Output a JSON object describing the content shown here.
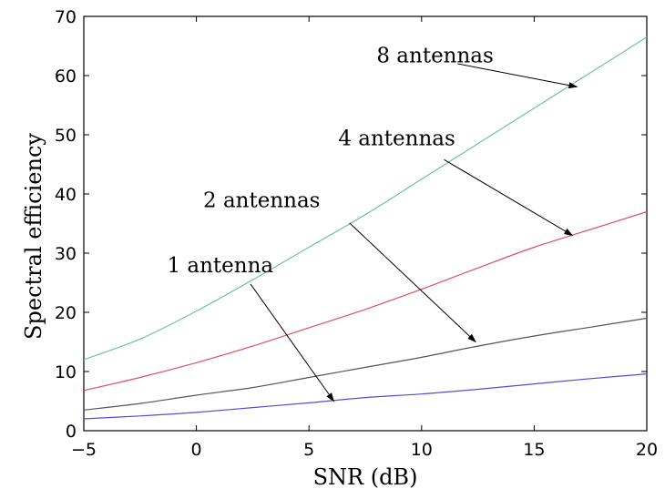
{
  "chart_data": {
    "type": "line",
    "title": "",
    "xlabel": "SNR (dB)",
    "ylabel": "Spectral efficiency",
    "xlim": [
      -5,
      20
    ],
    "ylim": [
      0,
      70
    ],
    "xticks": [
      -5,
      0,
      5,
      10,
      15,
      20
    ],
    "yticks": [
      0,
      10,
      20,
      30,
      40,
      50,
      60,
      70
    ],
    "grid": false,
    "x": [
      -5,
      -2.5,
      0,
      2.5,
      5,
      7.5,
      10,
      12.5,
      15,
      17.5,
      20
    ],
    "series": [
      {
        "name": "1 antenna",
        "color": "#4f4fd9",
        "values": [
          2.0,
          2.5,
          3.1,
          3.9,
          4.7,
          5.6,
          6.2,
          7.0,
          7.9,
          8.8,
          9.6
        ]
      },
      {
        "name": "2 antennas",
        "color": "#555555",
        "values": [
          3.5,
          4.6,
          6.0,
          7.3,
          9.0,
          10.7,
          12.4,
          14.3,
          16.0,
          17.5,
          19.0
        ]
      },
      {
        "name": "4 antennas",
        "color": "#e05060",
        "values": [
          6.8,
          9.0,
          11.5,
          14.3,
          17.4,
          20.5,
          23.9,
          27.5,
          31.0,
          34.0,
          37.0
        ]
      },
      {
        "name": "8 antennas",
        "color": "#6fc2a0",
        "values": [
          12.0,
          15.5,
          20.2,
          25.5,
          31.0,
          36.5,
          42.5,
          48.5,
          54.5,
          60.5,
          66.5
        ]
      }
    ],
    "annotations": [
      {
        "text": "8 antennas",
        "label_at": [
          8.0,
          62.2
        ],
        "arrow_from": [
          11.6,
          62.0
        ],
        "arrow_to": [
          16.9,
          58.1
        ]
      },
      {
        "text": "4 antennas",
        "label_at": [
          6.3,
          48.2
        ],
        "arrow_from": [
          11.0,
          45.8
        ],
        "arrow_to": [
          16.7,
          33.0
        ]
      },
      {
        "text": "2 antennas",
        "label_at": [
          0.3,
          37.8
        ],
        "arrow_from": [
          6.8,
          35.1
        ],
        "arrow_to": [
          12.4,
          15.0
        ]
      },
      {
        "text": "1 antenna",
        "label_at": [
          -1.3,
          26.8
        ],
        "arrow_from": [
          2.4,
          24.8
        ],
        "arrow_to": [
          6.1,
          5.0
        ]
      }
    ]
  }
}
